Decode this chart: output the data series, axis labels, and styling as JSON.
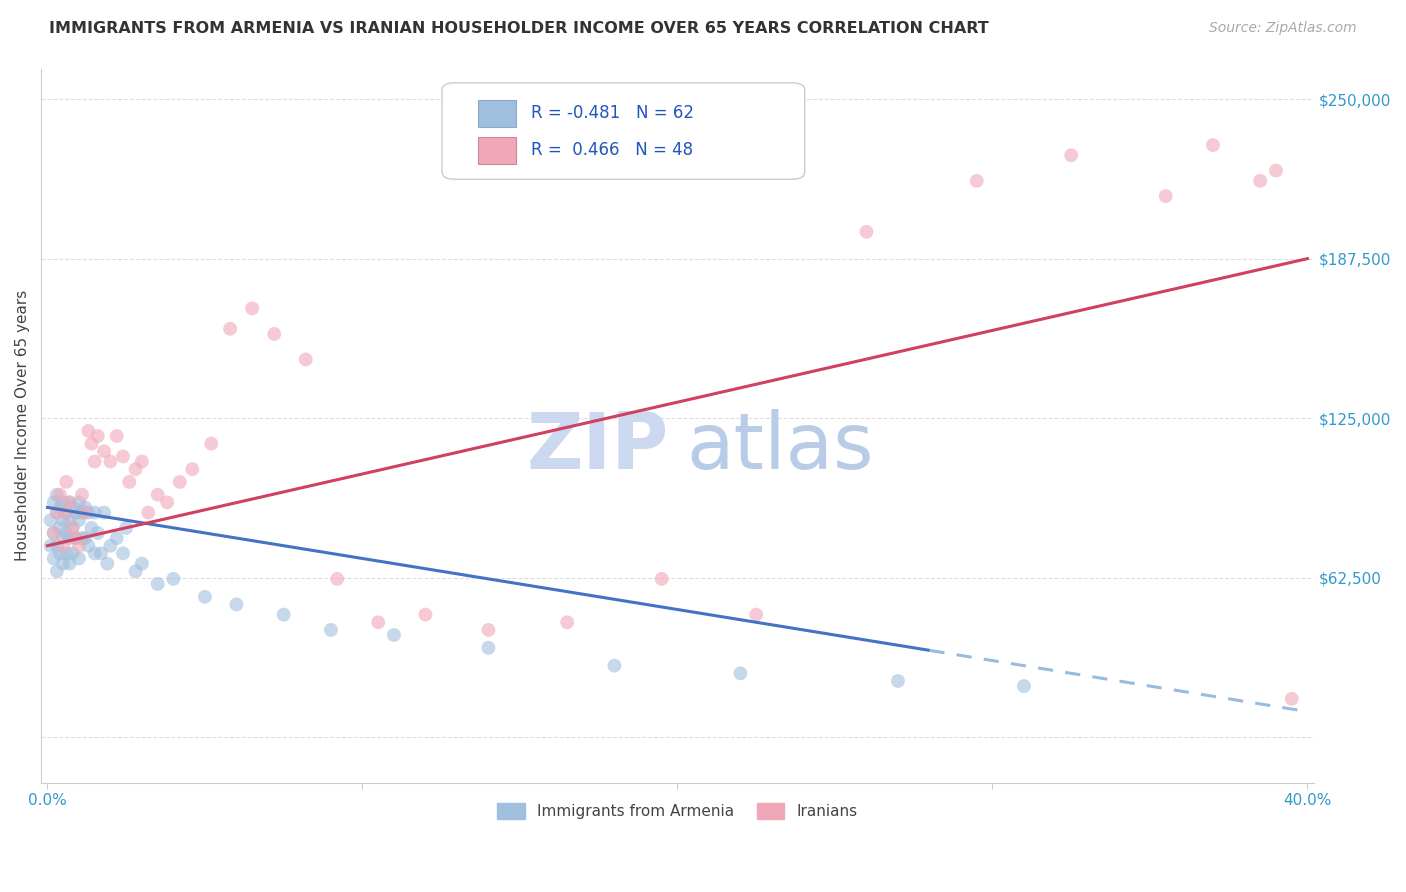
{
  "title": "IMMIGRANTS FROM ARMENIA VS IRANIAN HOUSEHOLDER INCOME OVER 65 YEARS CORRELATION CHART",
  "source": "Source: ZipAtlas.com",
  "ylabel": "Householder Income Over 65 years",
  "xlim": [
    -0.002,
    0.402
  ],
  "ylim": [
    -18000,
    262000
  ],
  "ytick_vals": [
    0,
    62500,
    125000,
    187500,
    250000
  ],
  "ytick_labels": [
    "",
    "$62,500",
    "$125,000",
    "$187,500",
    "$250,000"
  ],
  "xtick_vals": [
    0.0,
    0.1,
    0.2,
    0.3,
    0.4
  ],
  "xtick_labels": [
    "0.0%",
    "",
    "",
    "",
    "40.0%"
  ],
  "r_armenia": -0.481,
  "n_armenia": 62,
  "r_iranians": 0.466,
  "n_iranians": 48,
  "bg_color": "#ffffff",
  "grid_color": "#dddddd",
  "armenia_dot_color": "#a0bedd",
  "iranians_dot_color": "#f0a8b8",
  "armenia_line_color": "#4472c4",
  "armenia_dash_color": "#99bbdd",
  "iranians_line_color": "#d04060",
  "watermark_zip_color": "#ccd8f0",
  "watermark_atlas_color": "#b8cce8",
  "armenia_x": [
    0.001,
    0.001,
    0.002,
    0.002,
    0.002,
    0.003,
    0.003,
    0.003,
    0.003,
    0.004,
    0.004,
    0.004,
    0.005,
    0.005,
    0.005,
    0.005,
    0.006,
    0.006,
    0.006,
    0.007,
    0.007,
    0.007,
    0.007,
    0.008,
    0.008,
    0.008,
    0.009,
    0.009,
    0.01,
    0.01,
    0.01,
    0.011,
    0.011,
    0.012,
    0.012,
    0.013,
    0.013,
    0.014,
    0.015,
    0.015,
    0.016,
    0.017,
    0.018,
    0.019,
    0.02,
    0.022,
    0.024,
    0.025,
    0.028,
    0.03,
    0.035,
    0.04,
    0.05,
    0.06,
    0.075,
    0.09,
    0.11,
    0.14,
    0.18,
    0.22,
    0.27,
    0.31
  ],
  "armenia_y": [
    75000,
    85000,
    92000,
    80000,
    70000,
    95000,
    88000,
    75000,
    65000,
    90000,
    82000,
    72000,
    92000,
    85000,
    78000,
    68000,
    88000,
    80000,
    72000,
    92000,
    85000,
    78000,
    68000,
    90000,
    82000,
    72000,
    88000,
    78000,
    92000,
    85000,
    70000,
    88000,
    78000,
    90000,
    78000,
    88000,
    75000,
    82000,
    88000,
    72000,
    80000,
    72000,
    88000,
    68000,
    75000,
    78000,
    72000,
    82000,
    65000,
    68000,
    60000,
    62000,
    55000,
    52000,
    48000,
    42000,
    40000,
    35000,
    28000,
    25000,
    22000,
    20000
  ],
  "iranians_x": [
    0.002,
    0.003,
    0.004,
    0.005,
    0.006,
    0.006,
    0.007,
    0.008,
    0.009,
    0.01,
    0.011,
    0.012,
    0.013,
    0.014,
    0.015,
    0.016,
    0.018,
    0.02,
    0.022,
    0.024,
    0.026,
    0.028,
    0.03,
    0.032,
    0.035,
    0.038,
    0.042,
    0.046,
    0.052,
    0.058,
    0.065,
    0.072,
    0.082,
    0.092,
    0.105,
    0.12,
    0.14,
    0.165,
    0.195,
    0.225,
    0.26,
    0.295,
    0.325,
    0.355,
    0.37,
    0.385,
    0.39,
    0.395
  ],
  "iranians_y": [
    80000,
    88000,
    95000,
    75000,
    88000,
    100000,
    92000,
    82000,
    78000,
    75000,
    95000,
    88000,
    120000,
    115000,
    108000,
    118000,
    112000,
    108000,
    118000,
    110000,
    100000,
    105000,
    108000,
    88000,
    95000,
    92000,
    100000,
    105000,
    115000,
    160000,
    168000,
    158000,
    148000,
    62000,
    45000,
    48000,
    42000,
    45000,
    62000,
    48000,
    198000,
    218000,
    228000,
    212000,
    232000,
    218000,
    222000,
    15000
  ],
  "arm_line_x0": 0.0,
  "arm_line_y0": 90000,
  "arm_line_x1": 0.3,
  "arm_line_y1": 30000,
  "arm_line_solid_end": 0.28,
  "iran_line_x0": 0.0,
  "iran_line_y0": 75000,
  "iran_line_x1": 0.4,
  "iran_line_y1": 187500
}
